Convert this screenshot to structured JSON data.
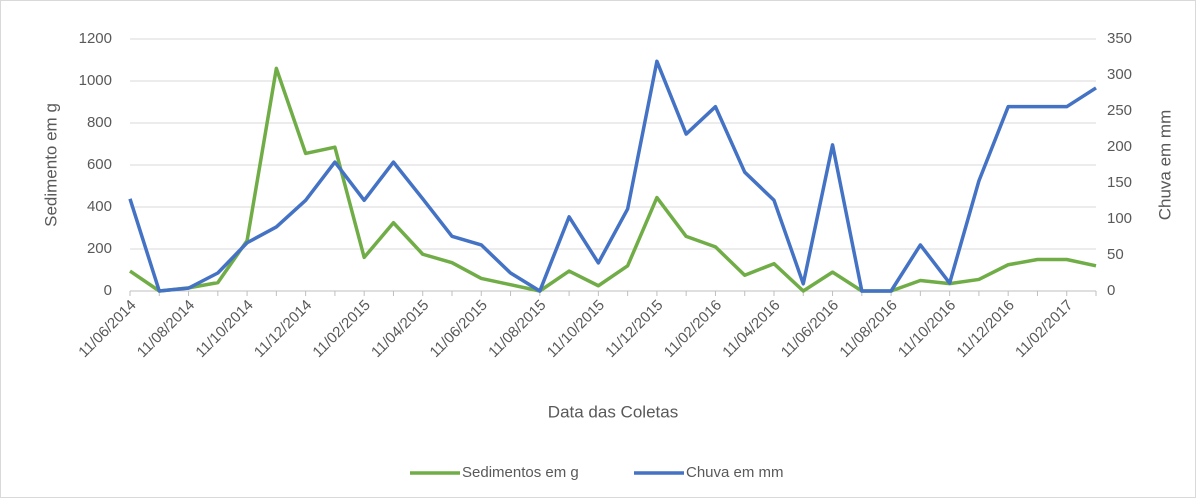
{
  "chart_data": {
    "type": "line",
    "x_label": "Data das Coletas",
    "y_label": "Sedimento em g",
    "y2_label": "Chuva em mm",
    "categories": [
      "11/06/2014",
      null,
      "11/08/2014",
      null,
      "11/10/2014",
      null,
      "11/12/2014",
      null,
      "11/02/2015",
      null,
      "11/04/2015",
      null,
      "11/06/2015",
      null,
      "11/08/2015",
      null,
      "11/10/2015",
      null,
      "11/12/2015",
      null,
      "11/02/2016",
      null,
      "11/04/2016",
      null,
      "11/06/2016",
      null,
      "11/08/2016",
      null,
      "11/10/2016",
      null,
      "11/12/2016",
      null,
      "11/02/2017",
      null
    ],
    "series": [
      {
        "name": "Sedimentos em g",
        "color": "#70ad47",
        "axis": "y",
        "values": [
          95,
          0,
          15,
          40,
          240,
          1060,
          655,
          685,
          160,
          325,
          175,
          135,
          60,
          30,
          0,
          95,
          25,
          120,
          445,
          260,
          210,
          75,
          130,
          0,
          90,
          0,
          0,
          50,
          35,
          55,
          125,
          150,
          150,
          120
        ]
      },
      {
        "name": "Chuva em mm",
        "color": "#4472c4",
        "axis": "y2",
        "values": [
          128,
          0,
          4,
          25,
          67,
          89,
          126,
          179,
          126,
          179,
          128,
          76,
          64,
          25,
          0,
          103,
          39,
          114,
          319,
          218,
          256,
          165,
          126,
          10,
          203,
          0,
          0,
          64,
          11,
          153,
          256,
          256,
          256,
          282
        ]
      }
    ],
    "ylim": [
      0,
      1200
    ],
    "yticks": [
      0,
      200,
      400,
      600,
      800,
      1000,
      1200
    ],
    "y2lim": [
      0,
      350
    ],
    "y2ticks": [
      0,
      50,
      100,
      150,
      200,
      250,
      300,
      350
    ],
    "grid": true,
    "legend": "bottom"
  }
}
